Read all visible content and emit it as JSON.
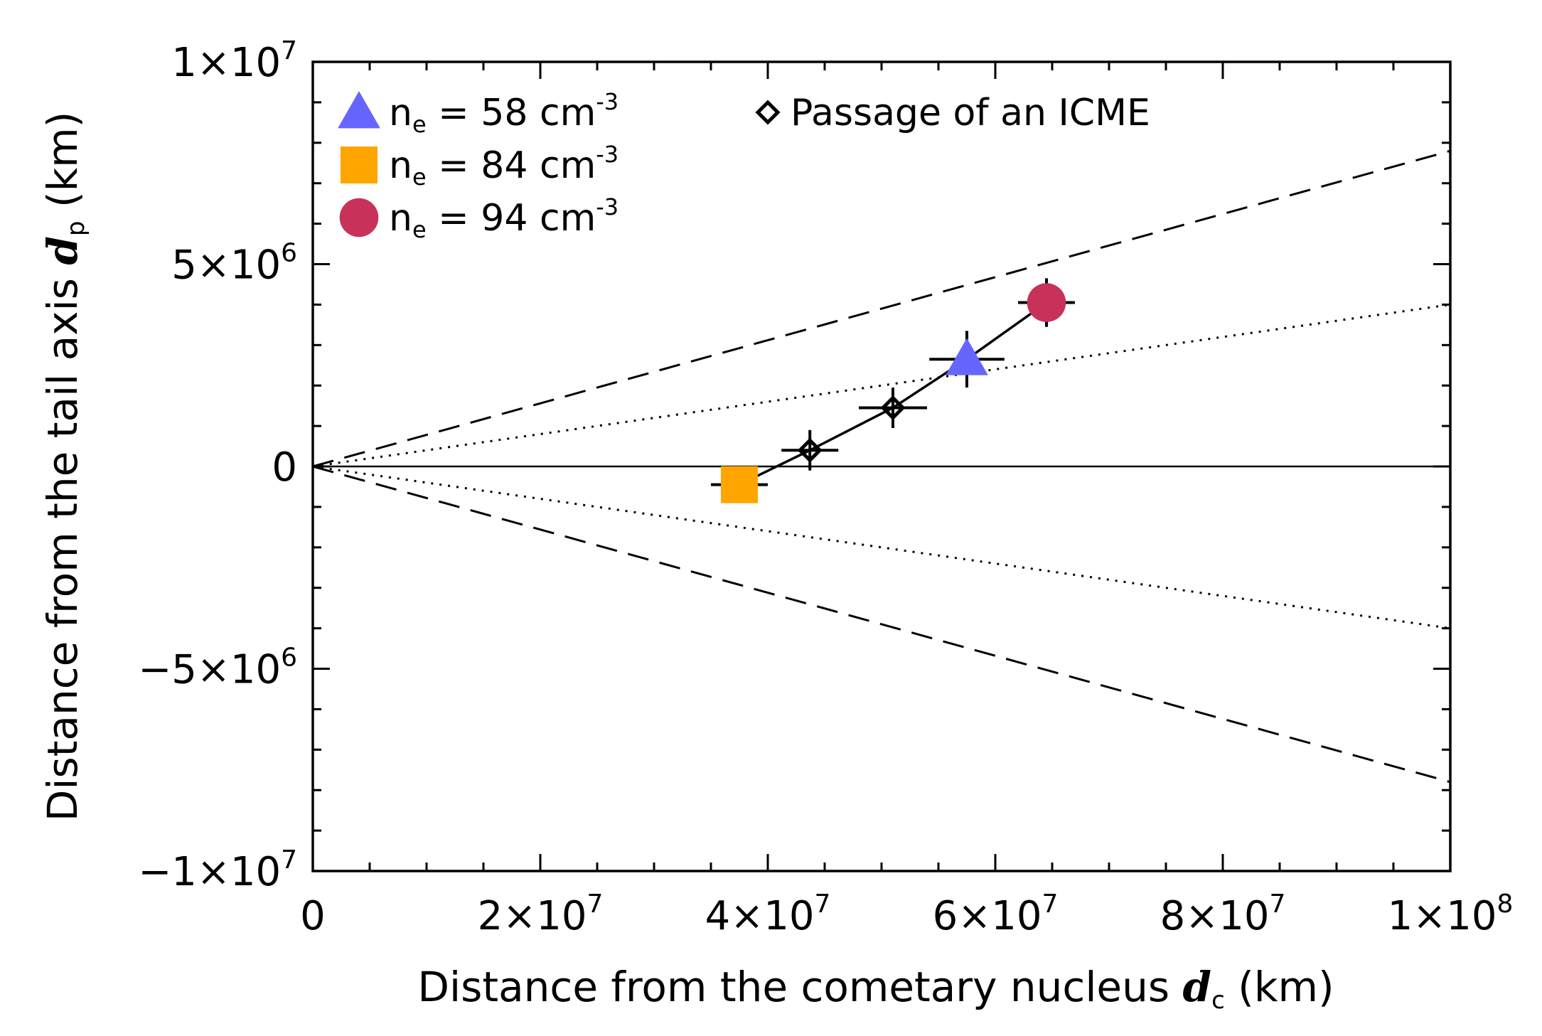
{
  "chart_data": {
    "type": "scatter",
    "title": "",
    "xlabel": {
      "prefix": "Distance from the cometary nucleus ",
      "symbol": "d",
      "sub": "c",
      "suffix": " (km)"
    },
    "ylabel": {
      "prefix": "Distance from the tail axis ",
      "symbol": "d",
      "sub": "p",
      "suffix": " (km)"
    },
    "xlim": [
      0,
      100000000
    ],
    "ylim": [
      -10000000,
      10000000
    ],
    "x_ticks": [
      {
        "value": 0,
        "mantissa": "0",
        "exp": ""
      },
      {
        "value": 20000000,
        "mantissa": "2×10",
        "exp": "7"
      },
      {
        "value": 40000000,
        "mantissa": "4×10",
        "exp": "7"
      },
      {
        "value": 60000000,
        "mantissa": "6×10",
        "exp": "7"
      },
      {
        "value": 80000000,
        "mantissa": "8×10",
        "exp": "7"
      },
      {
        "value": 100000000,
        "mantissa": "1×10",
        "exp": "8"
      }
    ],
    "y_ticks": [
      {
        "value": 10000000,
        "mantissa": "1×10",
        "exp": "7"
      },
      {
        "value": 5000000,
        "mantissa": "5×10",
        "exp": "6"
      },
      {
        "value": 0,
        "mantissa": "0",
        "exp": ""
      },
      {
        "value": -5000000,
        "mantissa": "−5×10",
        "exp": "6"
      },
      {
        "value": -10000000,
        "mantissa": "−1×10",
        "exp": "7"
      }
    ],
    "x_minor_step": 5000000,
    "y_minor_step": 1000000,
    "points": [
      {
        "name": "square",
        "marker": "square",
        "color": "#FFA500",
        "x": 37500000,
        "y": -450000,
        "xerr": 2500000,
        "yerr": 0
      },
      {
        "name": "diamond-1",
        "marker": "diamond",
        "color": "#000000",
        "x": 43700000,
        "y": 400000,
        "xerr": 2500000,
        "yerr": 500000
      },
      {
        "name": "diamond-2",
        "marker": "diamond",
        "color": "#000000",
        "x": 51000000,
        "y": 1450000,
        "xerr": 3000000,
        "yerr": 500000
      },
      {
        "name": "triangle",
        "marker": "triangle",
        "color": "#6666FF",
        "x": 57500000,
        "y": 2650000,
        "xerr": 3300000,
        "yerr": 700000
      },
      {
        "name": "circle",
        "marker": "circle",
        "color": "#C8325A",
        "x": 64500000,
        "y": 4050000,
        "xerr": 2500000,
        "yerr": 600000
      }
    ],
    "reference_lines": [
      {
        "name": "dashed-upper",
        "style": "dashed",
        "x0": 0,
        "y0": 0,
        "x1": 100000000,
        "y1": 7800000
      },
      {
        "name": "dashed-lower",
        "style": "dashed",
        "x0": 0,
        "y0": 0,
        "x1": 100000000,
        "y1": -7800000
      },
      {
        "name": "dotted-upper",
        "style": "dotted",
        "x0": 0,
        "y0": 0,
        "x1": 100000000,
        "y1": 4000000
      },
      {
        "name": "dotted-lower",
        "style": "dotted",
        "x0": 0,
        "y0": 0,
        "x1": 100000000,
        "y1": -4000000
      },
      {
        "name": "zero-line",
        "style": "solid",
        "x0": 0,
        "y0": 0,
        "x1": 100000000,
        "y1": 0
      }
    ],
    "legend": [
      {
        "marker": "triangle",
        "color": "#6666FF",
        "label": "n",
        "label_sub": "e",
        "value": " = 58 cm",
        "unit_exp": "-3"
      },
      {
        "marker": "square",
        "color": "#FFA500",
        "label": "n",
        "label_sub": "e",
        "value": " = 84 cm",
        "unit_exp": "-3"
      },
      {
        "marker": "circle",
        "color": "#C8325A",
        "label": "n",
        "label_sub": "e",
        "value": " = 94 cm",
        "unit_exp": "-3"
      }
    ],
    "legend_diamond": {
      "marker": "diamond",
      "color": "#000000",
      "label": "Passage of an ICME"
    },
    "legend_position": "top-left"
  }
}
